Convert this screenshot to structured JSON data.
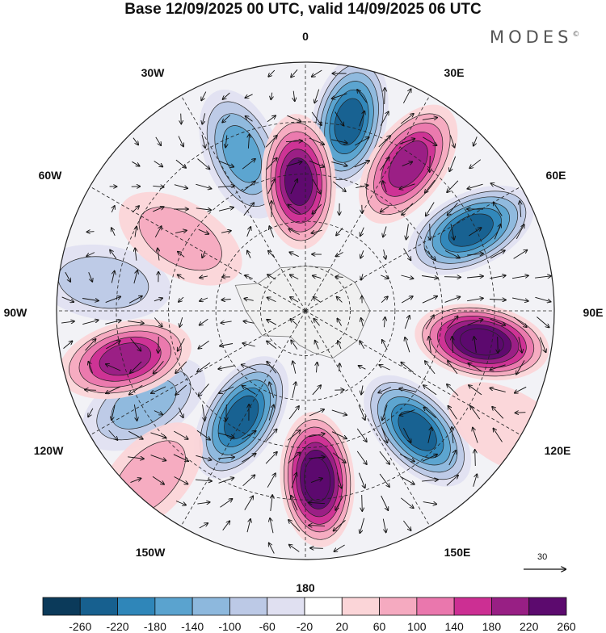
{
  "title": "Base 12/09/2025 00 UTC, valid 14/09/2025 06 UTC",
  "brand": "MODES",
  "brand_mark": "©",
  "longitude_labels": {
    "n0": "0",
    "e30": "30E",
    "e60": "60E",
    "e90": "90E",
    "e120": "120E",
    "e150": "150E",
    "s180": "180",
    "w150": "150W",
    "w120": "120W",
    "w90": "90W",
    "w60": "60W",
    "w30": "30W"
  },
  "wind_reference": "30",
  "colorbar": {
    "colors": [
      "#0b3a5a",
      "#17608f",
      "#2f86b9",
      "#5aa3cf",
      "#8db8dd",
      "#bcc9e6",
      "#e0e0f1",
      "#ffffff",
      "#fbd5d8",
      "#f5aac0",
      "#ea77ad",
      "#cc2f93",
      "#981f84",
      "#5c0a6e"
    ],
    "ticks": [
      "-260",
      "-220",
      "-180",
      "-140",
      "-100",
      "-60",
      "-20",
      "20",
      "60",
      "100",
      "140",
      "180",
      "220",
      "260"
    ]
  },
  "anomaly_centers": [
    {
      "lon": 13,
      "dist": 0.78,
      "value": -240
    },
    {
      "lon": -22,
      "dist": 0.68,
      "value": -150
    },
    {
      "lon": 357,
      "dist": 0.52,
      "value": 220
    },
    {
      "lon": 35,
      "dist": 0.72,
      "value": 200
    },
    {
      "lon": 64,
      "dist": 0.74,
      "value": -250
    },
    {
      "lon": 100,
      "dist": 0.72,
      "value": 270
    },
    {
      "lon": 137,
      "dist": 0.66,
      "value": -250
    },
    {
      "lon": 176,
      "dist": 0.68,
      "value": 270
    },
    {
      "lon": 211,
      "dist": 0.5,
      "value": -220
    },
    {
      "lon": 240,
      "dist": 0.75,
      "value": -130
    },
    {
      "lon": 255,
      "dist": 0.75,
      "value": 180
    },
    {
      "lon": 278,
      "dist": 0.82,
      "value": -90
    },
    {
      "lon": 300,
      "dist": 0.58,
      "value": 60
    },
    {
      "lon": 223,
      "dist": 0.92,
      "value": 60
    },
    {
      "lon": 120,
      "dist": 0.95,
      "value": 40
    }
  ]
}
